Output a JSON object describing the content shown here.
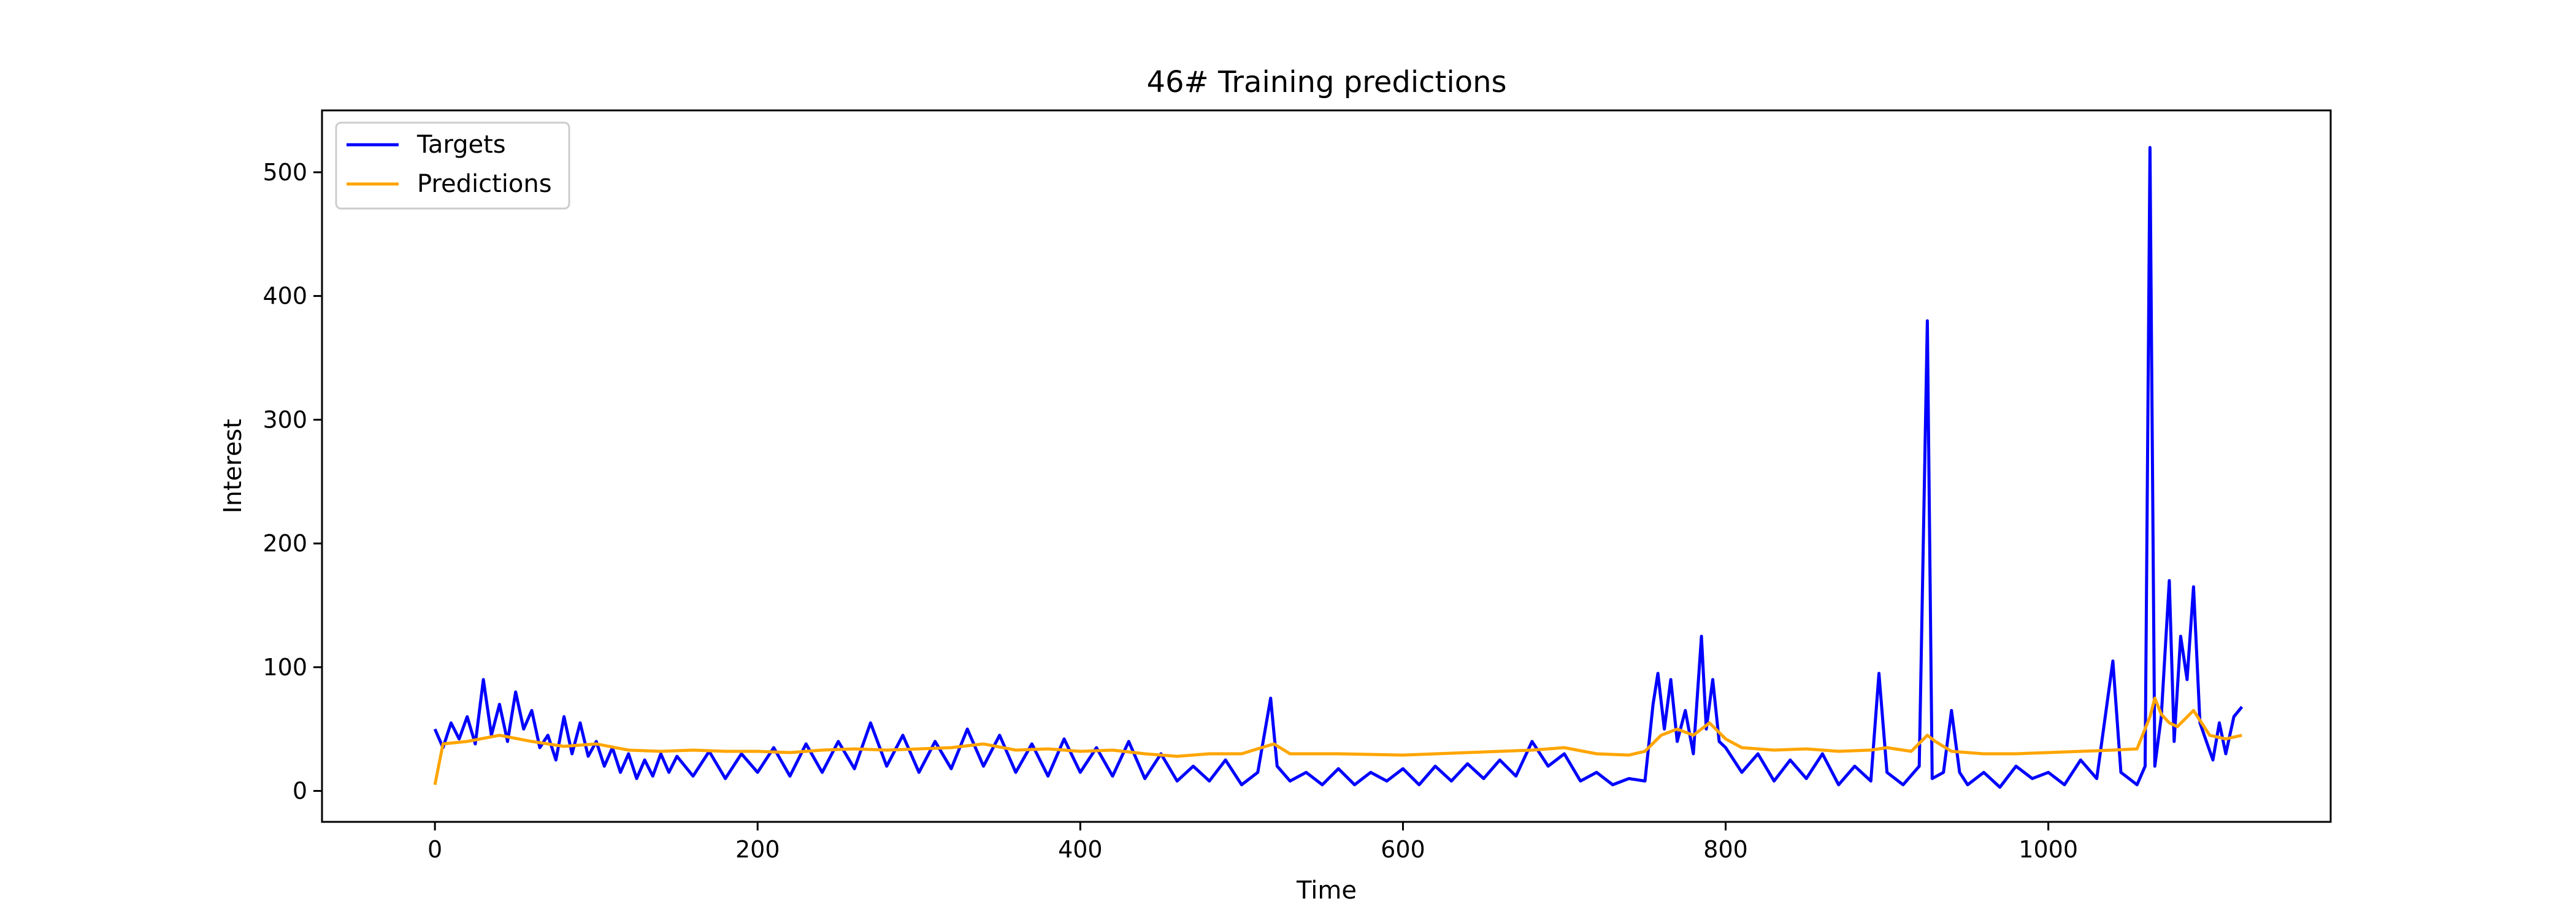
{
  "chart_data": {
    "type": "line",
    "title": "46# Training predictions",
    "xlabel": "Time",
    "ylabel": "Interest",
    "xlim": [
      -70,
      1175
    ],
    "ylim": [
      -25,
      550
    ],
    "x_ticks": [
      0,
      200,
      400,
      600,
      800,
      1000
    ],
    "y_ticks": [
      0,
      100,
      200,
      300,
      400,
      500
    ],
    "grid": false,
    "legend": {
      "location": "upper-left",
      "entries": [
        "Targets",
        "Predictions"
      ]
    },
    "colors": {
      "targets": "#0000ff",
      "predictions": "#ffa500"
    },
    "series": [
      {
        "name": "Targets",
        "points": [
          [
            0,
            50
          ],
          [
            5,
            35
          ],
          [
            10,
            55
          ],
          [
            15,
            42
          ],
          [
            20,
            60
          ],
          [
            25,
            38
          ],
          [
            30,
            90
          ],
          [
            35,
            45
          ],
          [
            40,
            70
          ],
          [
            45,
            40
          ],
          [
            50,
            80
          ],
          [
            55,
            50
          ],
          [
            60,
            65
          ],
          [
            65,
            35
          ],
          [
            70,
            45
          ],
          [
            75,
            25
          ],
          [
            80,
            60
          ],
          [
            85,
            30
          ],
          [
            90,
            55
          ],
          [
            95,
            28
          ],
          [
            100,
            40
          ],
          [
            105,
            20
          ],
          [
            110,
            35
          ],
          [
            115,
            15
          ],
          [
            120,
            30
          ],
          [
            125,
            10
          ],
          [
            130,
            25
          ],
          [
            135,
            12
          ],
          [
            140,
            30
          ],
          [
            145,
            15
          ],
          [
            150,
            28
          ],
          [
            160,
            12
          ],
          [
            170,
            32
          ],
          [
            180,
            10
          ],
          [
            190,
            30
          ],
          [
            200,
            15
          ],
          [
            210,
            35
          ],
          [
            220,
            12
          ],
          [
            230,
            38
          ],
          [
            240,
            15
          ],
          [
            250,
            40
          ],
          [
            260,
            18
          ],
          [
            270,
            55
          ],
          [
            280,
            20
          ],
          [
            290,
            45
          ],
          [
            300,
            15
          ],
          [
            310,
            40
          ],
          [
            320,
            18
          ],
          [
            330,
            50
          ],
          [
            340,
            20
          ],
          [
            350,
            45
          ],
          [
            360,
            15
          ],
          [
            370,
            38
          ],
          [
            380,
            12
          ],
          [
            390,
            42
          ],
          [
            400,
            15
          ],
          [
            410,
            35
          ],
          [
            420,
            12
          ],
          [
            430,
            40
          ],
          [
            440,
            10
          ],
          [
            450,
            30
          ],
          [
            460,
            8
          ],
          [
            470,
            20
          ],
          [
            480,
            8
          ],
          [
            490,
            25
          ],
          [
            500,
            5
          ],
          [
            510,
            15
          ],
          [
            518,
            75
          ],
          [
            522,
            20
          ],
          [
            530,
            8
          ],
          [
            540,
            15
          ],
          [
            550,
            5
          ],
          [
            560,
            18
          ],
          [
            570,
            5
          ],
          [
            580,
            15
          ],
          [
            590,
            8
          ],
          [
            600,
            18
          ],
          [
            610,
            5
          ],
          [
            620,
            20
          ],
          [
            630,
            8
          ],
          [
            640,
            22
          ],
          [
            650,
            10
          ],
          [
            660,
            25
          ],
          [
            670,
            12
          ],
          [
            680,
            40
          ],
          [
            690,
            20
          ],
          [
            700,
            30
          ],
          [
            710,
            8
          ],
          [
            720,
            15
          ],
          [
            730,
            5
          ],
          [
            740,
            10
          ],
          [
            750,
            8
          ],
          [
            755,
            70
          ],
          [
            758,
            95
          ],
          [
            762,
            50
          ],
          [
            766,
            90
          ],
          [
            770,
            40
          ],
          [
            775,
            65
          ],
          [
            780,
            30
          ],
          [
            785,
            125
          ],
          [
            788,
            50
          ],
          [
            792,
            90
          ],
          [
            796,
            40
          ],
          [
            800,
            35
          ],
          [
            810,
            15
          ],
          [
            820,
            30
          ],
          [
            830,
            8
          ],
          [
            840,
            25
          ],
          [
            850,
            10
          ],
          [
            860,
            30
          ],
          [
            870,
            5
          ],
          [
            880,
            20
          ],
          [
            890,
            8
          ],
          [
            895,
            95
          ],
          [
            900,
            15
          ],
          [
            910,
            5
          ],
          [
            920,
            20
          ],
          [
            925,
            380
          ],
          [
            928,
            10
          ],
          [
            935,
            15
          ],
          [
            940,
            65
          ],
          [
            945,
            15
          ],
          [
            950,
            5
          ],
          [
            960,
            15
          ],
          [
            970,
            3
          ],
          [
            980,
            20
          ],
          [
            990,
            10
          ],
          [
            1000,
            15
          ],
          [
            1010,
            5
          ],
          [
            1020,
            25
          ],
          [
            1030,
            10
          ],
          [
            1040,
            105
          ],
          [
            1045,
            15
          ],
          [
            1050,
            10
          ],
          [
            1055,
            5
          ],
          [
            1060,
            20
          ],
          [
            1063,
            520
          ],
          [
            1066,
            20
          ],
          [
            1070,
            60
          ],
          [
            1075,
            170
          ],
          [
            1078,
            40
          ],
          [
            1082,
            125
          ],
          [
            1086,
            90
          ],
          [
            1090,
            165
          ],
          [
            1094,
            55
          ],
          [
            1098,
            40
          ],
          [
            1102,
            25
          ],
          [
            1106,
            55
          ],
          [
            1110,
            30
          ],
          [
            1115,
            60
          ],
          [
            1120,
            68
          ]
        ]
      },
      {
        "name": "Predictions",
        "points": [
          [
            0,
            5
          ],
          [
            5,
            38
          ],
          [
            20,
            40
          ],
          [
            40,
            45
          ],
          [
            60,
            40
          ],
          [
            80,
            36
          ],
          [
            100,
            38
          ],
          [
            120,
            33
          ],
          [
            140,
            32
          ],
          [
            160,
            33
          ],
          [
            180,
            32
          ],
          [
            200,
            32
          ],
          [
            220,
            31
          ],
          [
            240,
            33
          ],
          [
            260,
            34
          ],
          [
            280,
            33
          ],
          [
            300,
            34
          ],
          [
            320,
            35
          ],
          [
            340,
            38
          ],
          [
            360,
            33
          ],
          [
            380,
            34
          ],
          [
            400,
            32
          ],
          [
            420,
            33
          ],
          [
            440,
            30
          ],
          [
            460,
            28
          ],
          [
            480,
            30
          ],
          [
            500,
            30
          ],
          [
            520,
            38
          ],
          [
            530,
            30
          ],
          [
            560,
            30
          ],
          [
            600,
            29
          ],
          [
            640,
            31
          ],
          [
            680,
            33
          ],
          [
            700,
            35
          ],
          [
            720,
            30
          ],
          [
            740,
            29
          ],
          [
            750,
            32
          ],
          [
            760,
            45
          ],
          [
            770,
            50
          ],
          [
            780,
            45
          ],
          [
            790,
            55
          ],
          [
            800,
            42
          ],
          [
            810,
            35
          ],
          [
            830,
            33
          ],
          [
            850,
            34
          ],
          [
            870,
            32
          ],
          [
            890,
            33
          ],
          [
            900,
            35
          ],
          [
            915,
            32
          ],
          [
            925,
            45
          ],
          [
            930,
            40
          ],
          [
            940,
            32
          ],
          [
            960,
            30
          ],
          [
            980,
            30
          ],
          [
            1000,
            31
          ],
          [
            1020,
            32
          ],
          [
            1040,
            33
          ],
          [
            1055,
            34
          ],
          [
            1063,
            60
          ],
          [
            1066,
            75
          ],
          [
            1070,
            62
          ],
          [
            1075,
            55
          ],
          [
            1080,
            52
          ],
          [
            1090,
            65
          ],
          [
            1095,
            55
          ],
          [
            1100,
            45
          ],
          [
            1110,
            42
          ],
          [
            1120,
            45
          ]
        ]
      }
    ]
  }
}
